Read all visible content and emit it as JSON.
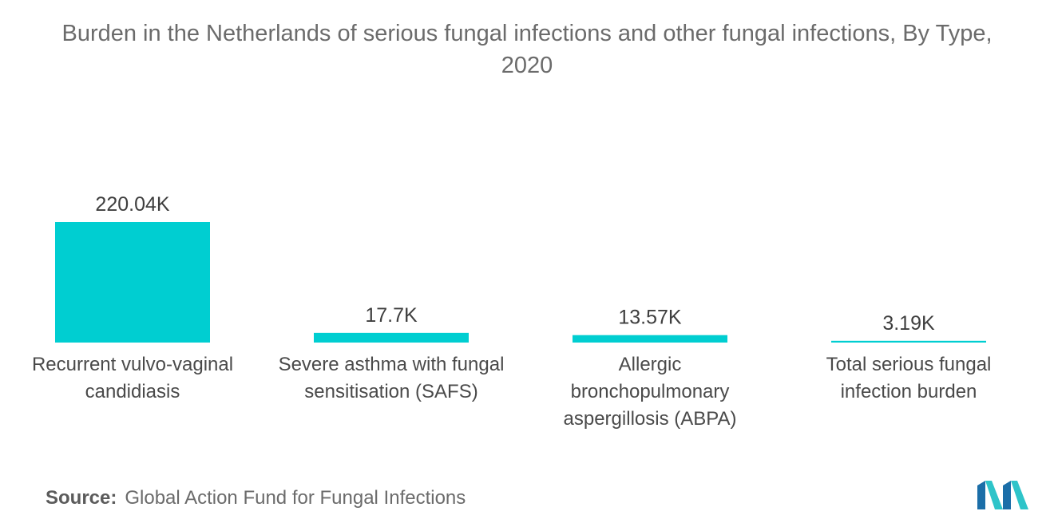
{
  "chart_data": {
    "type": "bar",
    "title": "Burden in the Netherlands of serious fungal infections and other fungal infections, By Type, 2020",
    "title_lines": [
      "Burden in the Netherlands of serious fungal infections and other fungal infections, By Type,",
      "2020"
    ],
    "categories": [
      "Recurrent vulvo-vaginal candidiasis",
      "Severe asthma with fungal sensitisation (SAFS)",
      "Allergic bronchopulmonary aspergillosis (ABPA)",
      "Total serious fungal infection burden"
    ],
    "category_lines": [
      [
        "Recurrent vulvo-vaginal",
        "candidiasis"
      ],
      [
        "Severe asthma with fungal",
        "sensitisation (SAFS)"
      ],
      [
        "Allergic",
        "bronchopulmonary",
        "aspergillosis (ABPA)"
      ],
      [
        "Total serious fungal",
        "infection burden"
      ]
    ],
    "values": [
      220.04,
      17.7,
      13.57,
      3.19
    ],
    "value_labels": [
      "220.04K",
      "17.7K",
      "13.57K",
      "3.19K"
    ],
    "value_unit": "K",
    "ylim": [
      0,
      220.04
    ],
    "grid": false,
    "legend": "none",
    "bar_color": "#00CED1"
  },
  "source": {
    "label": "Source:",
    "text": "Global Action Fund for Fungal Infections"
  },
  "logo": {
    "icon": "mordor-intelligence-logo",
    "colors": [
      "#1B6EA8",
      "#2EC4C9"
    ]
  }
}
